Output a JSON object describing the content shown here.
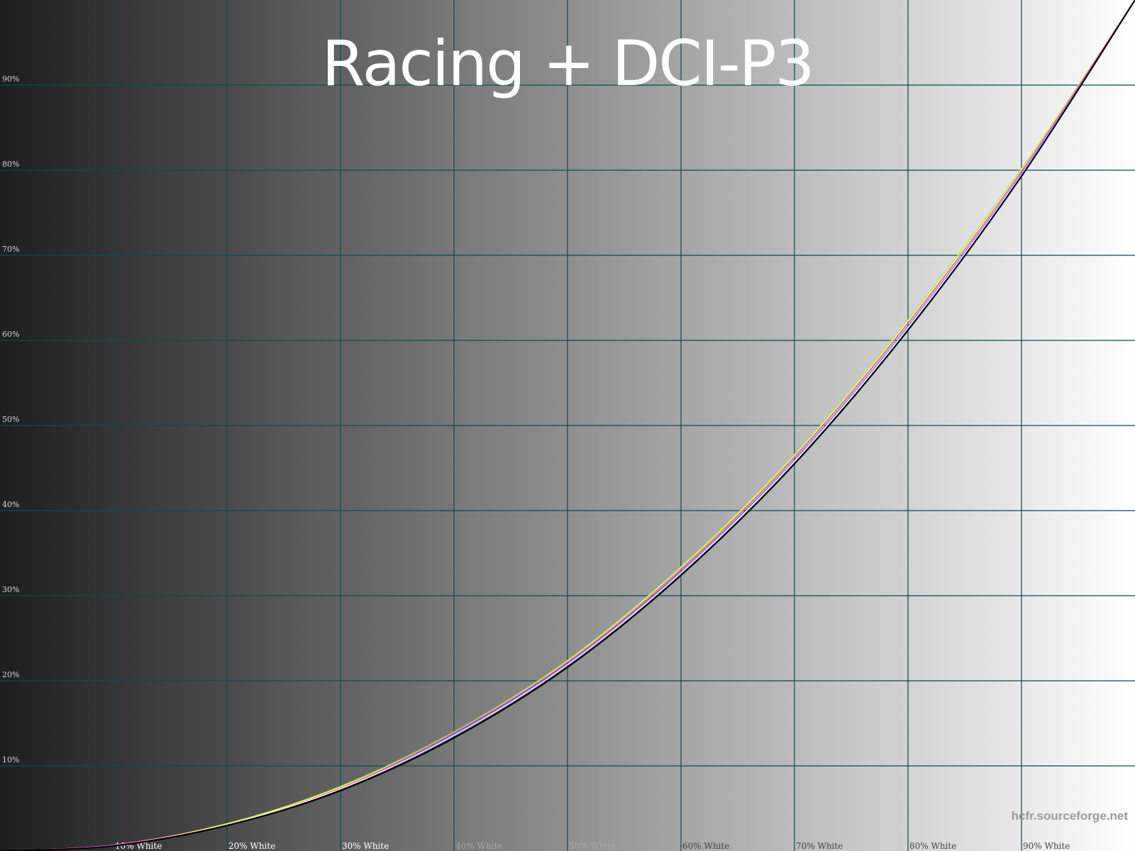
{
  "chart_data": {
    "type": "line",
    "title": "Racing + DCI-P3",
    "watermark": "hcfr.sourceforge.net",
    "xlim": [
      0,
      100
    ],
    "ylim": [
      0,
      100
    ],
    "grid": true,
    "x_tick_labels": [
      "10% White",
      "20% White",
      "30% White",
      "40% White",
      "50% White",
      "60% White",
      "70% White",
      "80% White",
      "90% White"
    ],
    "y_tick_labels": [
      "10%",
      "20%",
      "30%",
      "40%",
      "50%",
      "60%",
      "70%",
      "80%",
      "90%"
    ],
    "x": [
      0,
      10,
      20,
      30,
      40,
      50,
      60,
      70,
      80,
      90,
      100
    ],
    "series": [
      {
        "color": "#000000",
        "values": [
          0,
          0.6,
          3,
          7.1,
          13.3,
          21.6,
          32.4,
          45.5,
          61.2,
          79.3,
          100
        ]
      },
      {
        "color": "#7fff00",
        "values": [
          0,
          0.7,
          3.2,
          7.6,
          14,
          22.4,
          33.4,
          46.6,
          62.4,
          80.2,
          100
        ]
      },
      {
        "color": "#ffff40",
        "values": [
          0,
          0.7,
          3.2,
          7.5,
          13.9,
          22.3,
          33.3,
          46.5,
          62.3,
          80.1,
          100
        ]
      },
      {
        "color": "#ff40ff",
        "values": [
          0,
          0.7,
          3.1,
          7.4,
          13.9,
          22.2,
          33.1,
          46.3,
          62,
          79.9,
          100
        ]
      },
      {
        "color": "#4040ff",
        "values": [
          0,
          0.6,
          3.1,
          7.3,
          13.7,
          22,
          32.8,
          45.9,
          61.6,
          79.6,
          100
        ]
      },
      {
        "color": "#ffffff",
        "values": [
          0,
          0.6,
          3.1,
          7.3,
          13.6,
          21.9,
          32.7,
          45.8,
          61.5,
          79.5,
          100
        ]
      }
    ],
    "background": {
      "from": "#1e1e1e",
      "to": "#ffffff"
    },
    "grid_color": "#0d4a52"
  }
}
